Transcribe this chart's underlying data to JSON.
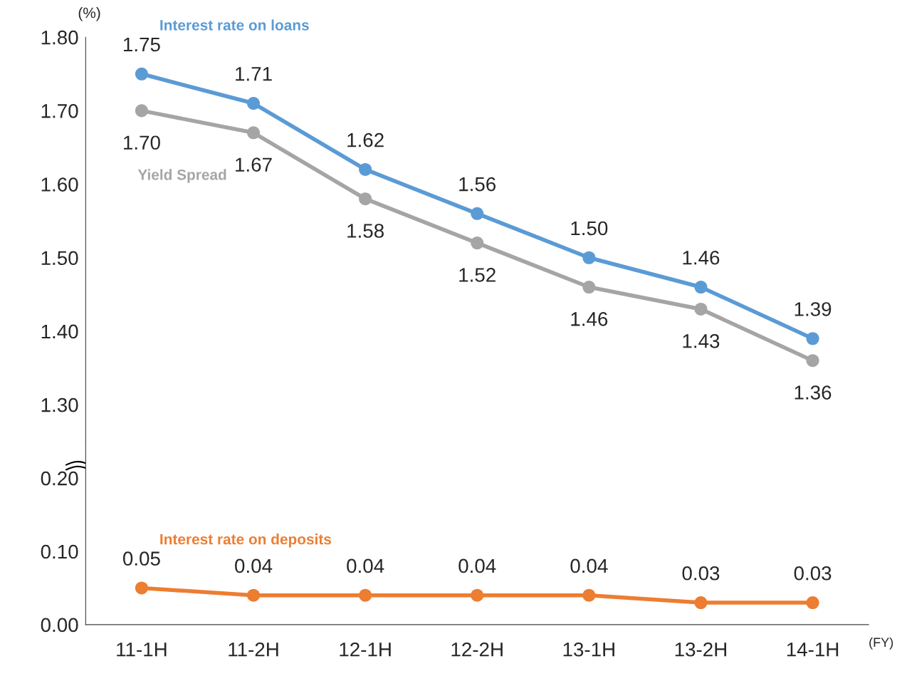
{
  "chart_data": [
    {
      "type": "line",
      "ylabel": "(%)",
      "ylim": [
        1.25,
        1.8
      ],
      "yticks": [
        {
          "value": 1.3,
          "label": "1.30"
        },
        {
          "value": 1.4,
          "label": "1.40"
        },
        {
          "value": 1.5,
          "label": "1.50"
        },
        {
          "value": 1.6,
          "label": "1.60"
        },
        {
          "value": 1.7,
          "label": "1.70"
        },
        {
          "value": 1.8,
          "label": "1.80"
        }
      ],
      "tick_labels": "y",
      "marker": "circle",
      "grid": false,
      "legend": false,
      "series": [
        {
          "name": "Interest rate on loans",
          "color": "#5b9bd5",
          "values": [
            1.75,
            1.71,
            1.62,
            1.56,
            1.5,
            1.46,
            1.39
          ],
          "value_labels": [
            "1.75",
            "1.71",
            "1.62",
            "1.56",
            "1.50",
            "1.46",
            "1.39"
          ]
        },
        {
          "name": "Yield Spread",
          "color": "#a5a5a5",
          "values": [
            1.7,
            1.67,
            1.58,
            1.52,
            1.46,
            1.43,
            1.36
          ],
          "value_labels": [
            "1.70",
            "1.67",
            "1.58",
            "1.52",
            "1.46",
            "1.43",
            "1.36"
          ]
        }
      ]
    },
    {
      "type": "line",
      "xlabel": "(FY)",
      "categories": [
        "11-1H",
        "11-2H",
        "12-1H",
        "12-2H",
        "13-1H",
        "13-2H",
        "14-1H"
      ],
      "ylim": [
        0,
        0.25
      ],
      "yticks": [
        {
          "value": 0,
          "label": "0.00"
        },
        {
          "value": 0.1,
          "label": "0.10"
        },
        {
          "value": 0.2,
          "label": "0.20"
        }
      ],
      "marker": "circle",
      "grid": false,
      "legend": false,
      "series": [
        {
          "name": "Interest rate on deposits",
          "color": "#ed7d31",
          "values": [
            0.05,
            0.04,
            0.04,
            0.04,
            0.04,
            0.03,
            0.03
          ],
          "value_labels": [
            "0.05",
            "0.04",
            "0.04",
            "0.04",
            "0.04",
            "0.03",
            "0.03"
          ]
        }
      ]
    }
  ]
}
